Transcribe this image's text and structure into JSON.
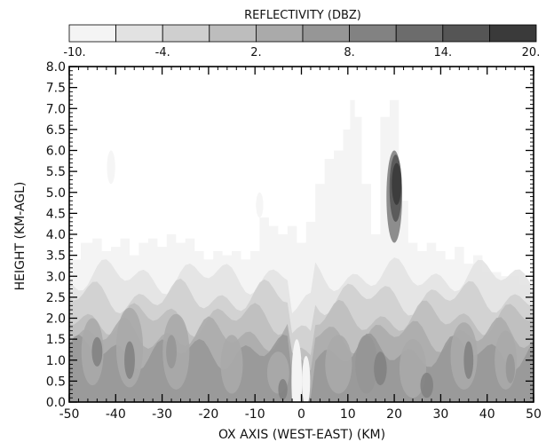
{
  "chart_data": {
    "type": "heatmap",
    "colorbar": {
      "title": "REFLECTIVITY (DBZ)",
      "tick_labels": [
        "-10.",
        "-4.",
        "2.",
        "8.",
        "14.",
        "20."
      ],
      "levels": [
        -10,
        -7,
        -4,
        -1,
        2,
        5,
        8,
        11,
        14,
        17,
        20
      ],
      "colors": [
        "#f4f4f4",
        "#e2e2e2",
        "#cfcfcf",
        "#bdbdbd",
        "#aaaaaa",
        "#969696",
        "#828282",
        "#6c6c6c",
        "#555555",
        "#3a3a3a"
      ]
    },
    "xlabel": "OX AXIS (WEST-EAST) (KM)",
    "ylabel": "HEIGHT (KM-AGL)",
    "xlim": [
      -50,
      50
    ],
    "ylim": [
      0,
      8
    ],
    "x_ticks": [
      -50,
      -40,
      -30,
      -20,
      -10,
      0,
      10,
      20,
      30,
      40,
      50
    ],
    "x_tick_labels": [
      "-50",
      "-40",
      "-30",
      "-20",
      "-10",
      "0",
      "10",
      "20",
      "30",
      "40",
      "50"
    ],
    "y_ticks": [
      0,
      0.5,
      1,
      1.5,
      2,
      2.5,
      3,
      3.5,
      4,
      4.5,
      5,
      5.5,
      6,
      6.5,
      7,
      7.5,
      8
    ],
    "y_tick_labels": [
      "0.0",
      "0.5",
      "1.0",
      "1.5",
      "2.0",
      "2.5",
      "3.0",
      "3.5",
      "4.0",
      "4.5",
      "5.0",
      "5.5",
      "6.0",
      "6.5",
      "7.0",
      "7.5",
      "8.0"
    ],
    "echo_top": {
      "x": [
        -49,
        -46,
        -44,
        -42,
        -40,
        -38,
        -36,
        -34,
        -32,
        -30,
        -28,
        -26,
        -24,
        -22,
        -20,
        -18,
        -16,
        -14,
        -12,
        -10,
        -8,
        -6,
        -4,
        -2,
        0,
        2,
        4,
        6,
        8,
        10,
        11,
        12,
        14,
        16,
        18,
        20,
        22,
        24,
        26,
        28,
        30,
        32,
        34,
        36,
        38,
        40,
        42,
        44,
        46,
        48
      ],
      "height_km": [
        3.4,
        3.8,
        3.9,
        3.6,
        3.7,
        3.9,
        3.5,
        3.8,
        3.9,
        3.7,
        4.0,
        3.8,
        3.9,
        3.6,
        3.4,
        3.6,
        3.5,
        3.6,
        3.4,
        3.6,
        4.4,
        4.2,
        4.0,
        4.2,
        3.8,
        4.3,
        5.2,
        5.8,
        6.0,
        6.5,
        7.2,
        6.8,
        5.2,
        4.0,
        6.8,
        7.2,
        4.8,
        3.8,
        3.6,
        3.8,
        3.6,
        3.4,
        3.7,
        3.3,
        3.5,
        3.1,
        3.1,
        3.0,
        3.0,
        2.8
      ]
    },
    "cells": [
      {
        "x": -41,
        "y": 5.6,
        "wx": 1.0,
        "wy": 0.8,
        "dbz": -8
      },
      {
        "x": -9,
        "y": 4.7,
        "wx": 0.8,
        "wy": 0.6,
        "dbz": -8
      },
      {
        "x": 20,
        "y": 4.9,
        "wx": 2.6,
        "wy": 2.2,
        "dbz": 8
      },
      {
        "x": 20.3,
        "y": 5.1,
        "wx": 1.9,
        "wy": 1.6,
        "dbz": 14
      },
      {
        "x": 20.5,
        "y": 5.2,
        "wx": 1.3,
        "wy": 1.0,
        "dbz": 17
      },
      {
        "x": -45,
        "y": 1.2,
        "wx": 4,
        "wy": 1.6,
        "dbz": 2
      },
      {
        "x": -44,
        "y": 1.2,
        "wx": 1.5,
        "wy": 0.7,
        "dbz": 8
      },
      {
        "x": -37,
        "y": 1.3,
        "wx": 5,
        "wy": 1.9,
        "dbz": 2
      },
      {
        "x": -37,
        "y": 1.0,
        "wx": 1.5,
        "wy": 0.9,
        "dbz": 8
      },
      {
        "x": -27,
        "y": 1.2,
        "wx": 5,
        "wy": 1.8,
        "dbz": 2
      },
      {
        "x": -28,
        "y": 1.2,
        "wx": 1.5,
        "wy": 0.8,
        "dbz": 5
      },
      {
        "x": -15,
        "y": 0.9,
        "wx": 4,
        "wy": 1.4,
        "dbz": 2
      },
      {
        "x": -5,
        "y": 0.7,
        "wx": 4,
        "wy": 1.0,
        "dbz": 2
      },
      {
        "x": -4,
        "y": 0.3,
        "wx": 1.2,
        "wy": 0.5,
        "dbz": 8
      },
      {
        "x": 8,
        "y": 0.9,
        "wx": 5,
        "wy": 1.4,
        "dbz": 2
      },
      {
        "x": 14,
        "y": 0.9,
        "wx": 4,
        "wy": 1.4,
        "dbz": 5
      },
      {
        "x": 17,
        "y": 0.8,
        "wx": 2,
        "wy": 0.8,
        "dbz": 8
      },
      {
        "x": 24,
        "y": 0.8,
        "wx": 5,
        "wy": 1.4,
        "dbz": 2
      },
      {
        "x": 27,
        "y": 0.4,
        "wx": 2,
        "wy": 0.6,
        "dbz": 8
      },
      {
        "x": 35,
        "y": 1.1,
        "wx": 5,
        "wy": 1.6,
        "dbz": 2
      },
      {
        "x": 36,
        "y": 1.0,
        "wx": 1.3,
        "wy": 0.9,
        "dbz": 8
      },
      {
        "x": 44,
        "y": 1.0,
        "wx": 4,
        "wy": 1.4,
        "dbz": 2
      },
      {
        "x": 45,
        "y": 0.8,
        "wx": 1.2,
        "wy": 0.7,
        "dbz": 5
      }
    ],
    "gaps": [
      {
        "x": -1,
        "y": 0.5,
        "wx": 1.5,
        "wy": 2.0
      },
      {
        "x": 1,
        "y": 0.5,
        "wx": 1.0,
        "wy": 1.2
      }
    ]
  }
}
